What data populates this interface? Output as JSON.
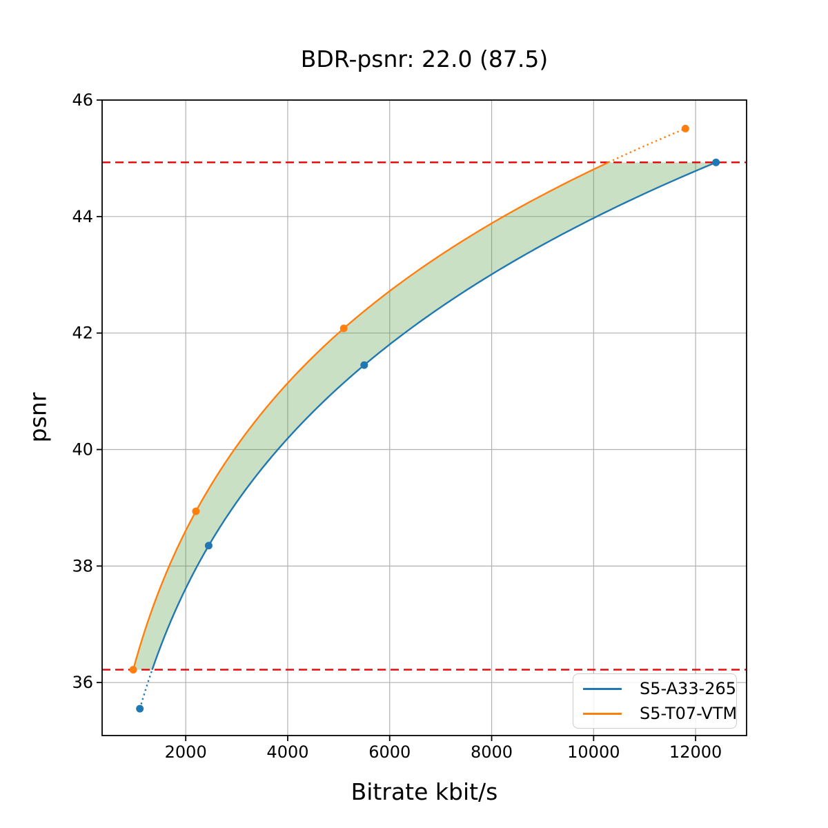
{
  "figure": {
    "title": "BDR-psnr: 22.0 (87.5)"
  },
  "chart_data": {
    "type": "line",
    "title": "BDR-psnr: 22.0 (87.5)",
    "xlabel": "Bitrate kbit/s",
    "ylabel": "psnr",
    "xlim": [
      360,
      13000
    ],
    "ylim": [
      35.09,
      46.0
    ],
    "x_ticks": [
      2000,
      4000,
      6000,
      8000,
      10000,
      12000
    ],
    "y_ticks": [
      36,
      38,
      40,
      42,
      44,
      46
    ],
    "grid": true,
    "grid_color": "#b0b0b0",
    "interpolation": "cubic in log-bitrate",
    "series": [
      {
        "name": "S5-A33-265",
        "color": "#1f77b4",
        "points": [
          [
            1100,
            35.55
          ],
          [
            2450,
            38.35
          ],
          [
            5500,
            41.45
          ],
          [
            12400,
            44.93
          ]
        ]
      },
      {
        "name": "S5-T07-VTM",
        "color": "#ff7f0e",
        "points": [
          [
            970,
            36.22
          ],
          [
            2200,
            38.94
          ],
          [
            5100,
            42.08
          ],
          [
            11800,
            45.51
          ]
        ]
      }
    ],
    "overlap_band": {
      "y_low": 36.22,
      "y_high": 44.93,
      "fill_color": "#5a9e4b",
      "fill_opacity": 0.32,
      "boundary_color": "#e60000",
      "boundary_style": "dashed"
    },
    "legend": {
      "position": "lower right",
      "entries": [
        "S5-A33-265",
        "S5-T07-VTM"
      ]
    }
  }
}
